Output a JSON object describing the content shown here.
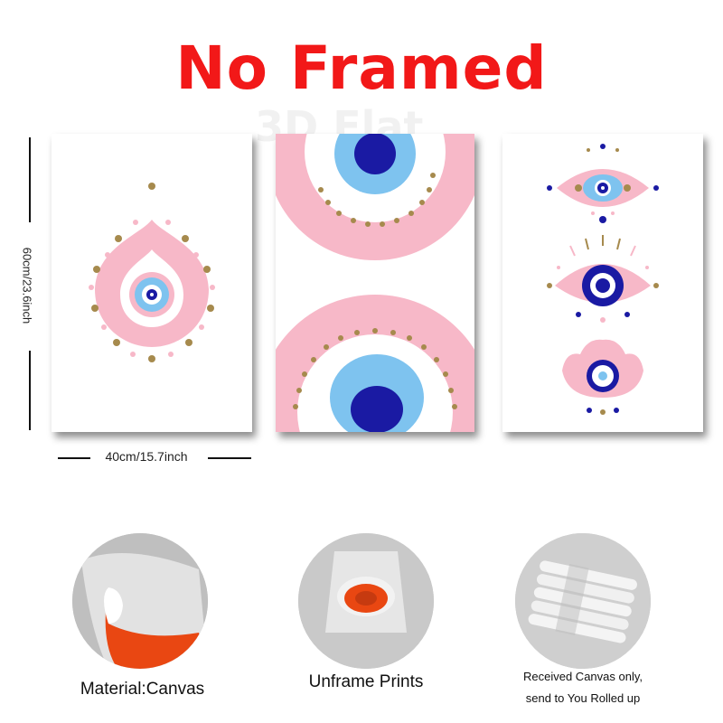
{
  "header": {
    "title": "No Framed",
    "watermark": "3D Flat"
  },
  "dimensions": {
    "height_label": "60cm/23.6inch",
    "width_label": "40cm/15.7inch"
  },
  "prints": [
    {
      "name": "teardrop-evil-eye-print"
    },
    {
      "name": "large-evil-eye-rings-print"
    },
    {
      "name": "three-evil-eyes-print"
    }
  ],
  "features": [
    {
      "caption": "Material:Canvas"
    },
    {
      "caption": "Unframe  Prints"
    },
    {
      "caption_line1": "Received Canvas only,",
      "caption_line2": "send to You Rolled up"
    }
  ],
  "colors": {
    "title": "#f21818",
    "pink": "#f7b8c8",
    "light_blue": "#7ec3ef",
    "navy": "#1a1aa3",
    "gold": "#a68a4d",
    "orange": "#e94712"
  }
}
